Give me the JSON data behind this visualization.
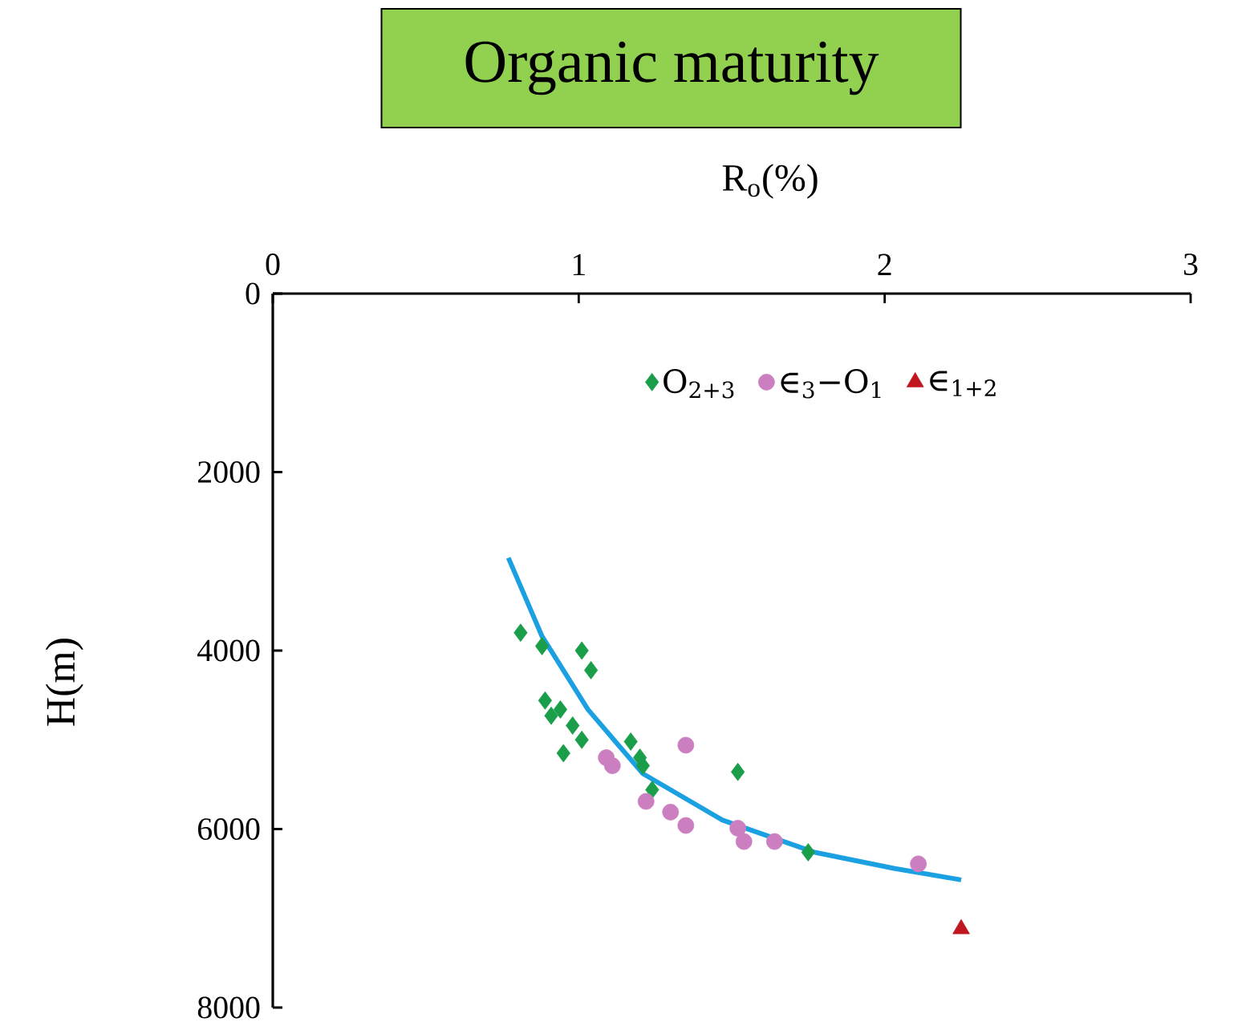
{
  "chart_data": {
    "type": "scatter",
    "title": "Organic maturity",
    "xlabel": "R$_{o}$(%)",
    "ylabel": "H(m)",
    "xlim": [
      0,
      3
    ],
    "xticks": [
      0,
      1,
      2,
      3
    ],
    "ylim": [
      8000,
      0
    ],
    "yticks": [
      0,
      2000,
      4000,
      6000,
      8000
    ],
    "legend": "top",
    "series": [
      {
        "name": "O$_{2+3}$",
        "color": "#1a9e4a",
        "marker": "diamond",
        "x": [
          0.81,
          0.88,
          1.01,
          1.04,
          0.89,
          0.94,
          0.91,
          0.98,
          1.01,
          0.95,
          1.17,
          1.2,
          1.21,
          1.24,
          1.52,
          1.75
        ],
        "values": [
          3800,
          3950,
          4000,
          4220,
          4560,
          4660,
          4730,
          4840,
          5000,
          5150,
          5020,
          5200,
          5290,
          5560,
          5360,
          6260
        ]
      },
      {
        "name": "∈$_{3}$−O$_{1}$",
        "color": "#cc7fc0",
        "marker": "circle",
        "x": [
          1.09,
          1.11,
          1.35,
          1.22,
          1.3,
          1.35,
          1.52,
          1.54,
          1.64,
          2.11
        ],
        "values": [
          5200,
          5290,
          5060,
          5690,
          5810,
          5960,
          5990,
          6140,
          6140,
          6390
        ]
      },
      {
        "name": "∈$_{1+2}$",
        "color": "#c0161e",
        "marker": "triangle",
        "x": [
          2.25
        ],
        "values": [
          7120
        ]
      },
      {
        "type": "line",
        "color": "#1ba1e2",
        "marker": "none",
        "x": [
          0.77,
          0.88,
          1.03,
          1.21,
          1.47,
          1.77,
          2.03,
          2.25
        ],
        "values": [
          2960,
          3840,
          4660,
          5380,
          5900,
          6260,
          6440,
          6570
        ]
      }
    ]
  }
}
